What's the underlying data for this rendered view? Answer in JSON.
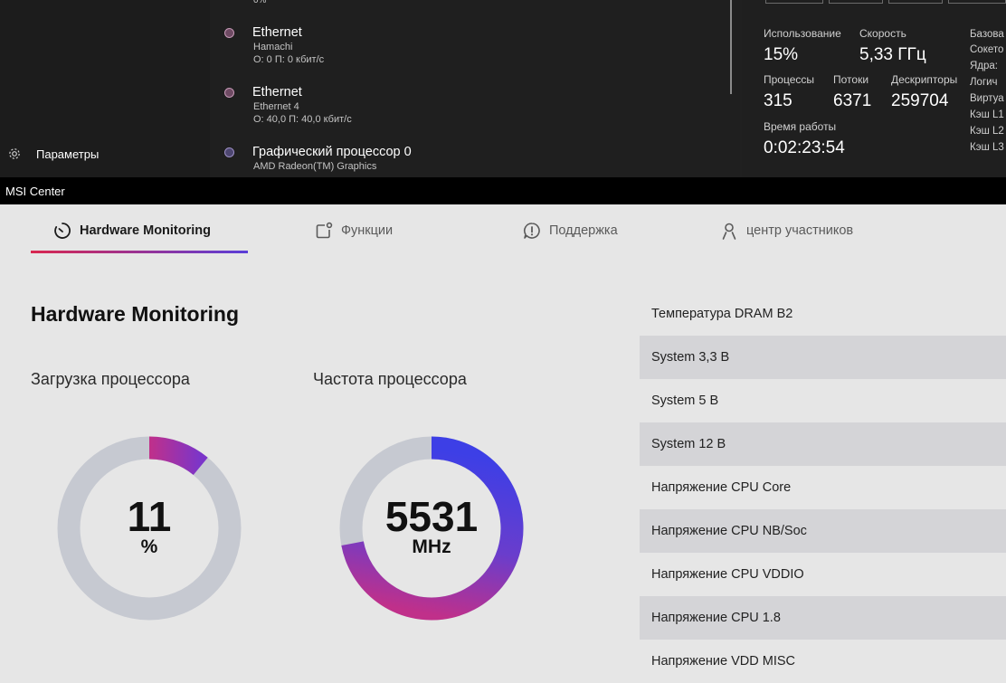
{
  "task_manager": {
    "nav": {
      "settings_label": "Параметры"
    },
    "list": {
      "top_partial_value": "0%",
      "items": [
        {
          "title": "Ethernet",
          "subtitle": "Hamachi",
          "stat": "О: 0 П: 0 кбит/с"
        },
        {
          "title": "Ethernet",
          "subtitle": "Ethernet 4",
          "stat": "О: 40,0 П: 40,0 кбит/с"
        },
        {
          "title": "Графический процессор 0",
          "subtitle": "AMD Radeon(TM) Graphics"
        }
      ]
    },
    "cpu": {
      "usage_label": "Использование",
      "usage_value": "15%",
      "speed_label": "Скорость",
      "speed_value": "5,33 ГГц",
      "processes_label": "Процессы",
      "processes_value": "315",
      "threads_label": "Потоки",
      "threads_value": "6371",
      "handles_label": "Дескрипторы",
      "handles_value": "259704",
      "uptime_label": "Время работы",
      "uptime_value": "0:02:23:54",
      "specs": [
        "Базова",
        "Сокето",
        "Ядра:",
        "Логич",
        "Виртуа",
        "Кэш L1",
        "Кэш L2",
        "Кэш L3"
      ]
    }
  },
  "window": {
    "title": "MSI Center"
  },
  "msi": {
    "tabs": [
      {
        "label": "Hardware Monitoring",
        "icon": "gauge-icon",
        "active": true
      },
      {
        "label": "Функции",
        "icon": "features-icon"
      },
      {
        "label": "Поддержка",
        "icon": "support-icon"
      },
      {
        "label": "центр участников",
        "icon": "user-icon"
      }
    ],
    "section_title": "Hardware Monitoring",
    "gauges": [
      {
        "title": "Загрузка процессора",
        "value": "11",
        "unit": "%",
        "fill_fraction": 0.11
      },
      {
        "title": "Частота процессора",
        "value": "5531",
        "unit": "MHz",
        "fill_fraction": 0.72
      }
    ],
    "sensors": [
      "Температура DRAM B2",
      "System 3,3 В",
      "System 5 В",
      "System 12 В",
      "Напряжение CPU Core",
      "Напряжение CPU NB/Soc",
      "Напряжение CPU VDDIO",
      "Напряжение CPU 1.8",
      "Напряжение VDD MISC"
    ],
    "colors": {
      "accent_start": "#d9274f",
      "accent_end": "#5a3ed8",
      "gauge_track": "#c6c9d1"
    }
  }
}
